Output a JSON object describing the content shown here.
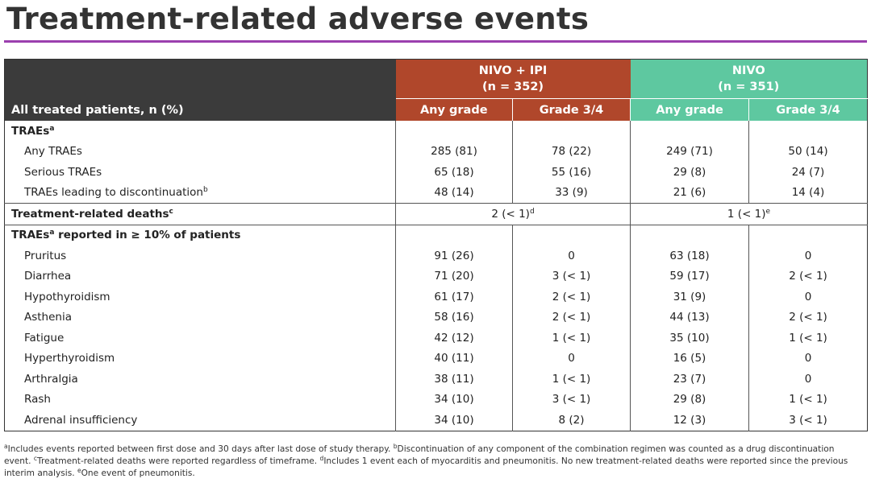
{
  "header": {
    "title": "Treatment-related adverse events"
  },
  "table": {
    "row_header": "All treated patients, n (%)",
    "groups": [
      {
        "name": "NIVO + IPI",
        "n": "(n = 352)",
        "color": "#b0472b"
      },
      {
        "name": "NIVO",
        "n": "(n = 351)",
        "color": "#5ec8a0"
      }
    ],
    "subheaders": [
      "Any grade",
      "Grade 3/4",
      "Any grade",
      "Grade 3/4"
    ],
    "rows": [
      {
        "label": "TRAEs",
        "sup": "a",
        "style": "section"
      },
      {
        "label": "Any TRAEs",
        "cells": [
          "285 (81)",
          "78 (22)",
          "249 (71)",
          "50 (14)"
        ]
      },
      {
        "label": "Serious TRAEs",
        "cells": [
          "65 (18)",
          "55 (16)",
          "29 (8)",
          "24 (7)"
        ]
      },
      {
        "label": "TRAEs leading to discontinuation",
        "sup": "b",
        "cells": [
          "48 (14)",
          "33 (9)",
          "21 (6)",
          "14 (4)"
        ],
        "rule": true
      },
      {
        "label": "Treatment-related deaths",
        "sup": "c",
        "style": "section",
        "merged": [
          {
            "text": "2 (< 1)",
            "sup": "d"
          },
          {
            "text": "1 (< 1)",
            "sup": "e"
          }
        ],
        "rule": true
      },
      {
        "label": "TRAEs",
        "sup": "a",
        "after": " reported in ≥ 10% of patients",
        "style": "section"
      },
      {
        "label": "Pruritus",
        "cells": [
          "91 (26)",
          "0",
          "63 (18)",
          "0"
        ]
      },
      {
        "label": "Diarrhea",
        "cells": [
          "71 (20)",
          "3 (< 1)",
          "59 (17)",
          "2 (< 1)"
        ]
      },
      {
        "label": "Hypothyroidism",
        "cells": [
          "61 (17)",
          "2 (< 1)",
          "31 (9)",
          "0"
        ]
      },
      {
        "label": "Asthenia",
        "cells": [
          "58 (16)",
          "2 (< 1)",
          "44 (13)",
          "2 (< 1)"
        ]
      },
      {
        "label": "Fatigue",
        "cells": [
          "42 (12)",
          "1 (< 1)",
          "35 (10)",
          "1 (< 1)"
        ]
      },
      {
        "label": "Hyperthyroidism",
        "cells": [
          "40 (11)",
          "0",
          "16 (5)",
          "0"
        ]
      },
      {
        "label": "Arthralgia",
        "cells": [
          "38 (11)",
          "1 (< 1)",
          "23 (7)",
          "0"
        ]
      },
      {
        "label": "Rash",
        "cells": [
          "34 (10)",
          "3 (< 1)",
          "29 (8)",
          "1 (< 1)"
        ]
      },
      {
        "label": "Adrenal insufficiency",
        "cells": [
          "34 (10)",
          "8 (2)",
          "12 (3)",
          "3 (< 1)"
        ]
      }
    ]
  },
  "footnotes": [
    {
      "mark": "a",
      "text": "Includes events reported between first dose and 30 days after last dose of study therapy."
    },
    {
      "mark": "b",
      "text": "Discontinuation of any component of the combination regimen was counted as a drug discontinuation event."
    },
    {
      "mark": "c",
      "text": "Treatment-related deaths were reported regardless of timeframe."
    },
    {
      "mark": "d",
      "text": "Includes 1 event each of myocarditis and pneumonitis. No new treatment-related deaths were reported since the previous interim analysis."
    },
    {
      "mark": "e",
      "text": "One event of pneumonitis."
    }
  ]
}
